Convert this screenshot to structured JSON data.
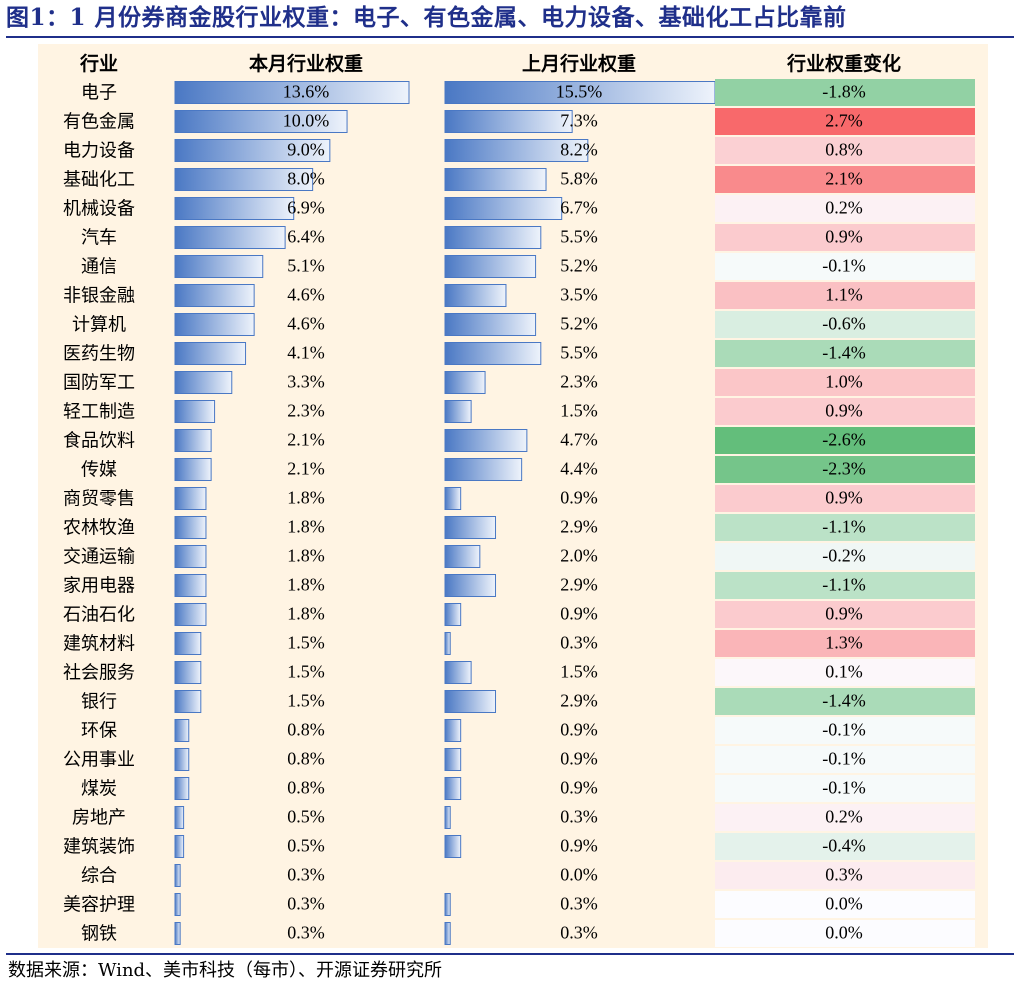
{
  "title": "图1：1 月份券商金股行业权重：电子、有色金属、电力设备、基础化工占比靠前",
  "source": "数据来源：Wind、美市科技（每市）、开源证券研究所",
  "colors": {
    "bar_dark": "#4a78c4",
    "bar_light": "#eef3fb",
    "positive": "#f8696b",
    "negative": "#63be7b",
    "neutral": "#fcfcff",
    "panel": "#fff4e3"
  },
  "chart_data": {
    "type": "table",
    "columns": [
      "行业",
      "本月行业权重",
      "上月行业权重",
      "行业权重变化"
    ],
    "rows": [
      {
        "industry": "电子",
        "current": 13.6,
        "previous": 15.5,
        "change": -1.8
      },
      {
        "industry": "有色金属",
        "current": 10.0,
        "previous": 7.3,
        "change": 2.7
      },
      {
        "industry": "电力设备",
        "current": 9.0,
        "previous": 8.2,
        "change": 0.8
      },
      {
        "industry": "基础化工",
        "current": 8.0,
        "previous": 5.8,
        "change": 2.1
      },
      {
        "industry": "机械设备",
        "current": 6.9,
        "previous": 6.7,
        "change": 0.2
      },
      {
        "industry": "汽车",
        "current": 6.4,
        "previous": 5.5,
        "change": 0.9
      },
      {
        "industry": "通信",
        "current": 5.1,
        "previous": 5.2,
        "change": -0.1
      },
      {
        "industry": "非银金融",
        "current": 4.6,
        "previous": 3.5,
        "change": 1.1
      },
      {
        "industry": "计算机",
        "current": 4.6,
        "previous": 5.2,
        "change": -0.6
      },
      {
        "industry": "医药生物",
        "current": 4.1,
        "previous": 5.5,
        "change": -1.4
      },
      {
        "industry": "国防军工",
        "current": 3.3,
        "previous": 2.3,
        "change": 1.0
      },
      {
        "industry": "轻工制造",
        "current": 2.3,
        "previous": 1.5,
        "change": 0.9
      },
      {
        "industry": "食品饮料",
        "current": 2.1,
        "previous": 4.7,
        "change": -2.6
      },
      {
        "industry": "传媒",
        "current": 2.1,
        "previous": 4.4,
        "change": -2.3
      },
      {
        "industry": "商贸零售",
        "current": 1.8,
        "previous": 0.9,
        "change": 0.9
      },
      {
        "industry": "农林牧渔",
        "current": 1.8,
        "previous": 2.9,
        "change": -1.1
      },
      {
        "industry": "交通运输",
        "current": 1.8,
        "previous": 2.0,
        "change": -0.2
      },
      {
        "industry": "家用电器",
        "current": 1.8,
        "previous": 2.9,
        "change": -1.1
      },
      {
        "industry": "石油石化",
        "current": 1.8,
        "previous": 0.9,
        "change": 0.9
      },
      {
        "industry": "建筑材料",
        "current": 1.5,
        "previous": 0.3,
        "change": 1.3
      },
      {
        "industry": "社会服务",
        "current": 1.5,
        "previous": 1.5,
        "change": 0.1
      },
      {
        "industry": "银行",
        "current": 1.5,
        "previous": 2.9,
        "change": -1.4
      },
      {
        "industry": "环保",
        "current": 0.8,
        "previous": 0.9,
        "change": -0.1
      },
      {
        "industry": "公用事业",
        "current": 0.8,
        "previous": 0.9,
        "change": -0.1
      },
      {
        "industry": "煤炭",
        "current": 0.8,
        "previous": 0.9,
        "change": -0.1
      },
      {
        "industry": "房地产",
        "current": 0.5,
        "previous": 0.3,
        "change": 0.2
      },
      {
        "industry": "建筑装饰",
        "current": 0.5,
        "previous": 0.9,
        "change": -0.4
      },
      {
        "industry": "综合",
        "current": 0.3,
        "previous": 0.0,
        "change": 0.3
      },
      {
        "industry": "美容护理",
        "current": 0.3,
        "previous": 0.3,
        "change": 0.0
      },
      {
        "industry": "钢铁",
        "current": 0.3,
        "previous": 0.3,
        "change": 0.0
      }
    ]
  }
}
